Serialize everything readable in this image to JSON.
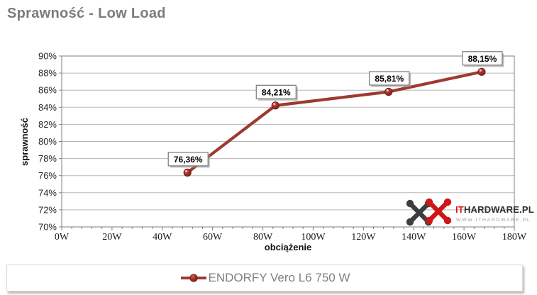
{
  "chart_data": {
    "type": "line",
    "title": "Sprawność - Low Load",
    "xlabel": "obciążenie",
    "ylabel": "sprawność",
    "xlim": [
      0,
      180
    ],
    "ylim": [
      70,
      90
    ],
    "xtick_labels": [
      "0W",
      "20W",
      "40W",
      "60W",
      "80W",
      "100W",
      "120W",
      "140W",
      "160W",
      "180W"
    ],
    "ytick_labels": [
      "70%",
      "72%",
      "74%",
      "76%",
      "78%",
      "80%",
      "82%",
      "84%",
      "86%",
      "88%",
      "90%"
    ],
    "grid": true,
    "legend_position": "bottom",
    "series": [
      {
        "name": "ENDORFY Vero L6 750 W",
        "color": "#9d3a31",
        "x_estimated_watts": [
          50,
          85,
          130,
          167
        ],
        "y_percent": [
          76.36,
          84.21,
          85.81,
          88.15
        ],
        "point_labels": [
          "76,36%",
          "84,21%",
          "85,81%",
          "88,15%"
        ]
      }
    ]
  },
  "watermark": {
    "brand_prefix": "IT",
    "brand_rest": "HARDWARE.PL",
    "url": "WWW.ITHARDWARE.PL"
  },
  "colors": {
    "series_line": "#9d3a31",
    "title_gray": "#7c7c7c",
    "logo_red": "#cf1717",
    "logo_gray": "#3d3d3d",
    "gridline": "#b7b7b7",
    "axis": "#7f7f7f"
  }
}
